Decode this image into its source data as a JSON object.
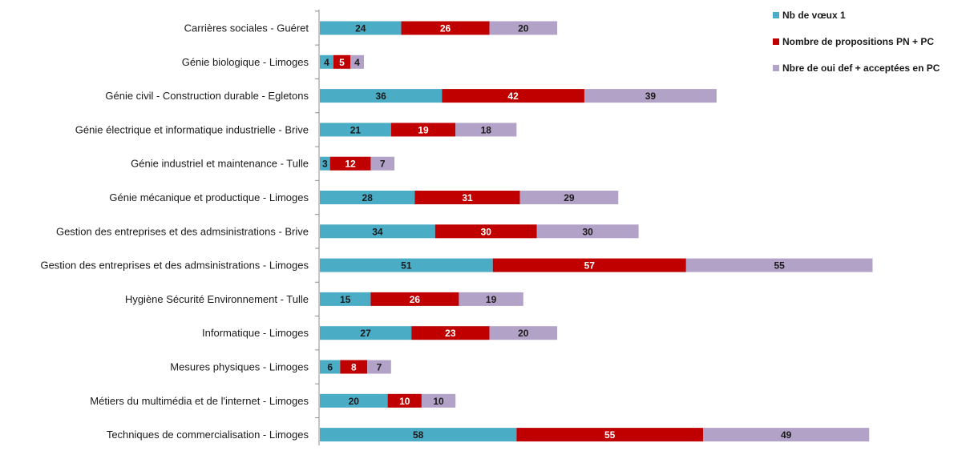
{
  "chart_data": {
    "type": "bar",
    "orientation": "horizontal",
    "stacked": true,
    "legend_position": "top-right",
    "grid": false,
    "categories": [
      "Carrières sociales - Guéret",
      "Génie biologique - Limoges",
      "Génie civil - Construction durable - Egletons",
      "Génie électrique et informatique industrielle - Brive",
      "Génie industriel et maintenance - Tulle",
      "Génie mécanique et productique - Limoges",
      "Gestion des entreprises et des admsinistrations - Brive",
      "Gestion des entreprises et des admsinistrations - Limoges",
      "Hygiène Sécurité Environnement - Tulle",
      "Informatique - Limoges",
      "Mesures physiques - Limoges",
      "Métiers du multimédia et de l'internet - Limoges",
      "Techniques de commercialisation - Limoges"
    ],
    "series": [
      {
        "name": "Nb de vœux 1",
        "color": "#4bacc6",
        "label_color": "#1a1a1a",
        "values": [
          24,
          4,
          36,
          21,
          3,
          28,
          34,
          51,
          15,
          27,
          6,
          20,
          58
        ]
      },
      {
        "name": "Nombre de propositions PN + PC",
        "color": "#c00000",
        "label_color": "#ffffff",
        "values": [
          26,
          5,
          42,
          19,
          12,
          31,
          30,
          57,
          26,
          23,
          8,
          10,
          55
        ]
      },
      {
        "name": "Nbre de oui def + acceptées en PC",
        "color": "#b3a2c7",
        "label_color": "#1a1a1a",
        "values": [
          20,
          4,
          39,
          18,
          7,
          29,
          30,
          55,
          19,
          20,
          7,
          10,
          49
        ]
      }
    ],
    "title": "",
    "xlabel": "",
    "ylabel": ""
  }
}
